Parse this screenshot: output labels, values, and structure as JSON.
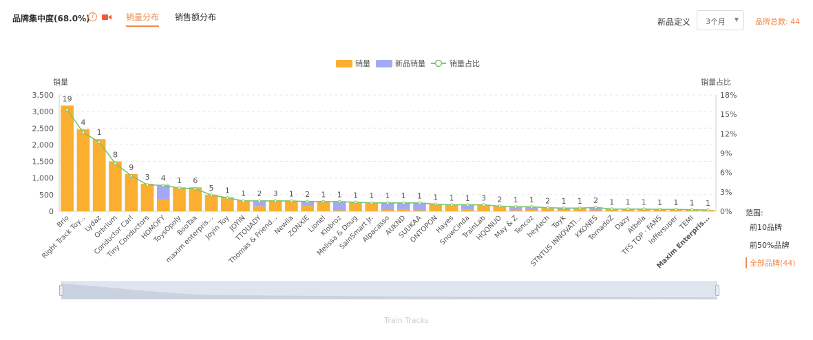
{
  "header": {
    "title": "品牌集中度(68.0%)",
    "tabs": [
      {
        "label": "销量分布",
        "active": true
      },
      {
        "label": "销售额分布",
        "active": false
      }
    ],
    "new_def_label": "新品定义",
    "new_def_value": "3个月",
    "brand_total": "品牌总数: 44"
  },
  "colors": {
    "accent": "#f08a4b",
    "sales": "#fbae2f",
    "new_sales": "#a5a9f3",
    "share_line": "#7cc56b"
  },
  "range": {
    "title": "范围:",
    "items": [
      {
        "label": "前10品牌",
        "active": false
      },
      {
        "label": "前50%品牌",
        "active": false
      },
      {
        "label": "全部品牌(44)",
        "active": true
      }
    ]
  },
  "slider": {
    "label": "Train Tracks"
  },
  "chart_data": {
    "type": "bar",
    "ylabel": "销量",
    "y2label": "销量占比",
    "ylim": [
      0,
      3500
    ],
    "y2lim": [
      0,
      18
    ],
    "yticks": [
      "0",
      "500",
      "1,000",
      "1,500",
      "2,000",
      "2,500",
      "3,000",
      "3,500"
    ],
    "y2ticks": [
      "0%",
      "3%",
      "6%",
      "9%",
      "12%",
      "15%",
      "18%"
    ],
    "legend": [
      "销量",
      "新品销量",
      "销量占比"
    ],
    "legend_position": "top-center",
    "grid": true,
    "categories": [
      "Brio",
      "Right Track Toy...",
      "Lydaz",
      "Orbrium",
      "Conductor Carl",
      "Tiny Conductors",
      "HOMOFY",
      "ToysOpoly",
      "BooTaa",
      "maxim enterpris...",
      "Joyin Toy",
      "JOYIN",
      "TTOUADY",
      "Thomas & Friend...",
      "Newlia",
      "ZONXIE",
      "Lionel",
      "Klobroz",
      "Melissa & Doug",
      "SainSmart Jr.",
      "Alpacasso",
      "AUKND",
      "SUUKAA",
      "ONTOPON",
      "Hayes",
      "SnowCinda",
      "TrainLab",
      "HQQNUO",
      "May & Z",
      "Tencoz",
      "heytech",
      "Toyk",
      "STNTUS INNOVATI...",
      "KKONES",
      "TornadoZ",
      "Dazy",
      "Atbela",
      "TFS TOP · FANS",
      "Ioffersuper",
      "TEMI",
      "Maxim Enterpris..."
    ],
    "bold_categories": [
      "Maxim Enterpris..."
    ],
    "data_labels": [
      19,
      4,
      1,
      8,
      9,
      3,
      4,
      1,
      6,
      5,
      1,
      1,
      2,
      3,
      1,
      2,
      1,
      1,
      1,
      1,
      1,
      1,
      1,
      1,
      1,
      1,
      3,
      2,
      1,
      1,
      2,
      1,
      1,
      2,
      1,
      1,
      1,
      1,
      1,
      1,
      1
    ],
    "series": [
      {
        "name": "销量",
        "values": [
          3180,
          2470,
          2170,
          1500,
          1120,
          830,
          350,
          720,
          700,
          500,
          420,
          330,
          150,
          330,
          320,
          160,
          300,
          30,
          280,
          270,
          40,
          50,
          30,
          220,
          200,
          60,
          200,
          160,
          30,
          40,
          110,
          40,
          100,
          30,
          70,
          70,
          70,
          60,
          60,
          50,
          40
        ]
      },
      {
        "name": "新品销量",
        "values": [
          0,
          0,
          0,
          0,
          0,
          0,
          450,
          0,
          20,
          0,
          0,
          0,
          180,
          0,
          0,
          150,
          0,
          270,
          0,
          0,
          230,
          220,
          230,
          0,
          0,
          130,
          0,
          0,
          120,
          100,
          0,
          60,
          0,
          90,
          0,
          0,
          0,
          0,
          0,
          0,
          0
        ]
      },
      {
        "name": "销量占比",
        "values": [
          15.7,
          12.2,
          10.7,
          7.4,
          5.5,
          4.1,
          4.0,
          3.6,
          3.5,
          2.5,
          2.1,
          1.6,
          1.6,
          1.6,
          1.6,
          1.5,
          1.5,
          1.5,
          1.4,
          1.3,
          1.3,
          1.3,
          1.3,
          1.1,
          1.0,
          1.0,
          1.0,
          0.8,
          0.7,
          0.7,
          0.55,
          0.5,
          0.5,
          0.6,
          0.35,
          0.35,
          0.35,
          0.3,
          0.3,
          0.25,
          0.2
        ]
      }
    ]
  }
}
